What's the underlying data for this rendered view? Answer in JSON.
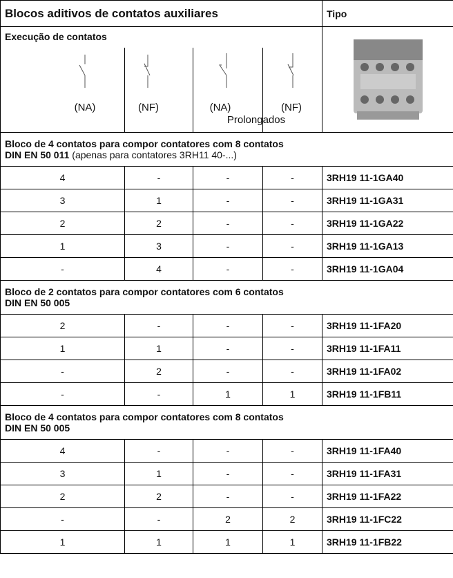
{
  "header": {
    "title": "Blocos aditivos de contatos auxiliares",
    "type_label": "Tipo"
  },
  "execution": {
    "title": "Execução de contatos",
    "labels": [
      "(NA)",
      "(NF)",
      "(NA)",
      "(NF)"
    ],
    "note": "Prolongados"
  },
  "sections": [
    {
      "heading": "Bloco de 4 contatos para compor contatores com 8 contatos",
      "standard": "DIN EN 50 011",
      "note": "(apenas para contatores 3RH11 40-...)",
      "rows": [
        [
          "4",
          "-",
          "-",
          "-",
          "3RH19 11-1GA40"
        ],
        [
          "3",
          "1",
          "-",
          "-",
          "3RH19 11-1GA31"
        ],
        [
          "2",
          "2",
          "-",
          "-",
          "3RH19 11-1GA22"
        ],
        [
          "1",
          "3",
          "-",
          "-",
          "3RH19 11-1GA13"
        ],
        [
          "-",
          "4",
          "-",
          "-",
          "3RH19 11-1GA04"
        ]
      ]
    },
    {
      "heading": "Bloco de 2 contatos para compor contatores com 6 contatos",
      "standard": "DIN EN 50 005",
      "rows": [
        [
          "2",
          "-",
          "-",
          "-",
          "3RH19 11-1FA20"
        ],
        [
          "1",
          "1",
          "-",
          "-",
          "3RH19 11-1FA11"
        ],
        [
          "-",
          "2",
          "-",
          "-",
          "3RH19 11-1FA02"
        ],
        [
          "-",
          "-",
          "1",
          "1",
          "3RH19 11-1FB11"
        ]
      ]
    },
    {
      "heading": "Bloco de 4 contatos para compor contatores com 8 contatos",
      "standard": "DIN EN 50 005",
      "rows": [
        [
          "4",
          "-",
          "-",
          "-",
          "3RH19 11-1FA40"
        ],
        [
          "3",
          "1",
          "-",
          "-",
          "3RH19 11-1FA31"
        ],
        [
          "2",
          "2",
          "-",
          "-",
          "3RH19 11-1FA22"
        ],
        [
          "-",
          "-",
          "2",
          "2",
          "3RH19 11-1FC22"
        ],
        [
          "1",
          "1",
          "1",
          "1",
          "3RH19 11-1FB22"
        ]
      ]
    }
  ]
}
